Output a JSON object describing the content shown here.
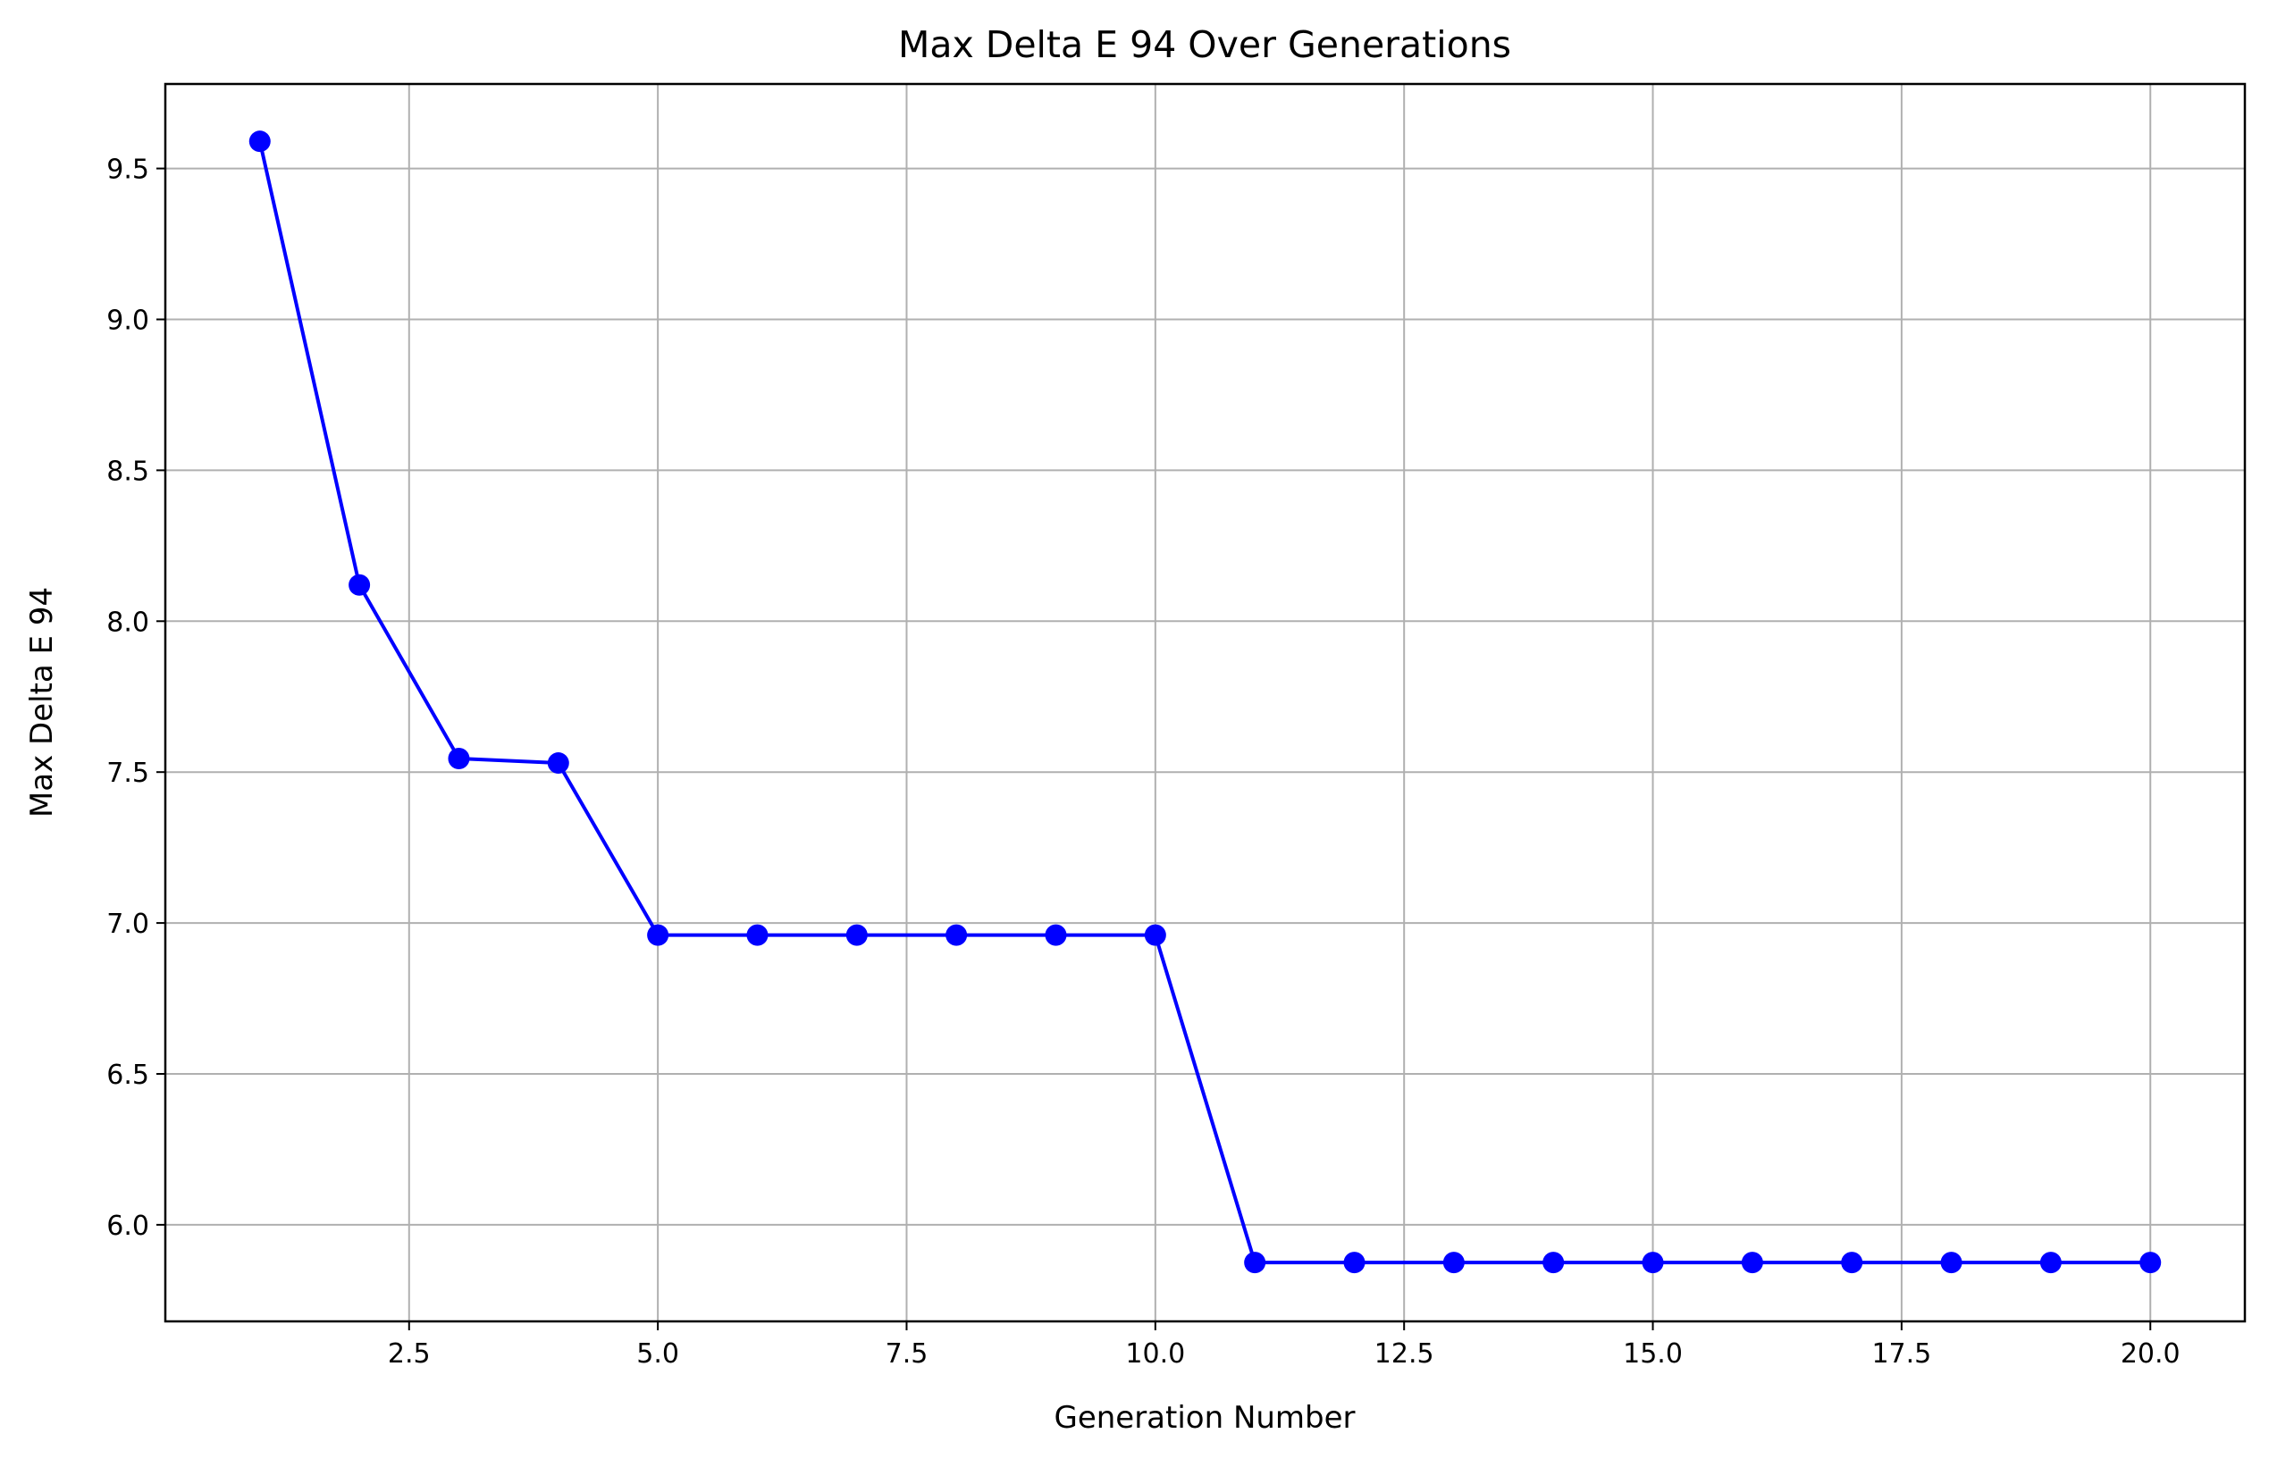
{
  "chart_data": {
    "type": "line",
    "title": "Max Delta E 94 Over Generations",
    "xlabel": "Generation Number",
    "ylabel": "Max Delta E 94",
    "xlim": [
      0.05,
      20.95
    ],
    "ylim": [
      5.68,
      9.78
    ],
    "xticks": [
      2.5,
      5.0,
      7.5,
      10.0,
      12.5,
      15.0,
      17.5,
      20.0
    ],
    "xtick_labels": [
      "2.5",
      "5.0",
      "7.5",
      "10.0",
      "12.5",
      "15.0",
      "17.5",
      "20.0"
    ],
    "yticks": [
      6.0,
      6.5,
      7.0,
      7.5,
      8.0,
      8.5,
      9.0,
      9.5
    ],
    "ytick_labels": [
      "6.0",
      "6.5",
      "7.0",
      "7.5",
      "8.0",
      "8.5",
      "9.0",
      "9.5"
    ],
    "grid": true,
    "series": [
      {
        "color": "#0000ff",
        "marker": "circle",
        "x": [
          1,
          2,
          3,
          4,
          5,
          6,
          7,
          8,
          9,
          10,
          11,
          12,
          13,
          14,
          15,
          16,
          17,
          18,
          19,
          20
        ],
        "y": [
          9.59,
          8.12,
          7.545,
          7.53,
          6.96,
          6.96,
          6.96,
          6.96,
          6.96,
          6.96,
          5.875,
          5.875,
          5.875,
          5.875,
          5.875,
          5.875,
          5.875,
          5.875,
          5.875,
          5.875
        ]
      }
    ]
  }
}
